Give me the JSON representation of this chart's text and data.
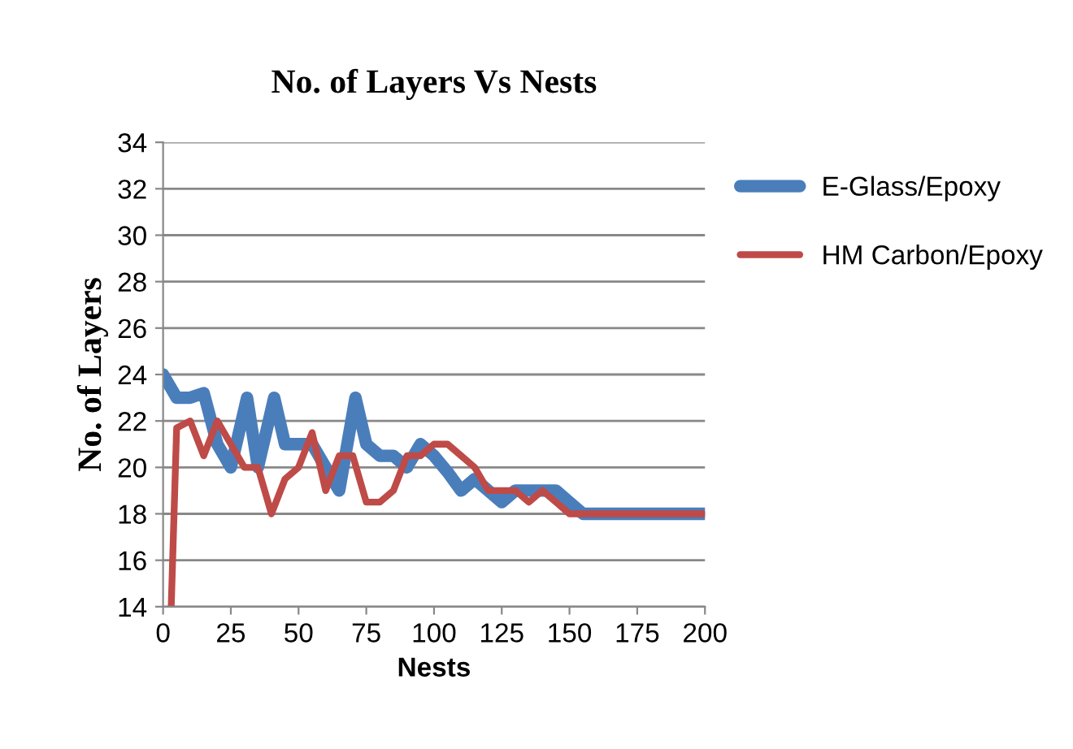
{
  "chart_data": {
    "type": "line",
    "title": "No. of Layers Vs Nests",
    "xlabel": "Nests",
    "ylabel": "No. of Layers",
    "xlim": [
      0,
      200
    ],
    "xticks": [
      0,
      25,
      50,
      75,
      100,
      125,
      150,
      175,
      200
    ],
    "ylim": [
      14,
      34
    ],
    "yticks": [
      14,
      16,
      18,
      20,
      22,
      24,
      26,
      28,
      30,
      32,
      34
    ],
    "grid": "y",
    "legend": "top right",
    "marker": "none",
    "line_style": "solid",
    "series": [
      {
        "name": "E-Glass/Epoxy",
        "color": "#4a7ebb",
        "x": [
          0,
          5,
          10,
          15,
          20,
          25,
          31,
          35,
          41,
          45,
          50,
          55,
          60,
          65,
          71,
          75,
          80,
          85,
          90,
          95,
          100,
          105,
          110,
          115,
          120,
          125,
          130,
          135,
          140,
          145,
          150,
          155,
          200
        ],
        "values": [
          24,
          23,
          23,
          23.2,
          21,
          20,
          23,
          20,
          23,
          21,
          21,
          21,
          20,
          19,
          23,
          21,
          20.5,
          20.5,
          20,
          21,
          20.5,
          19.8,
          19,
          19.5,
          19,
          18.5,
          19,
          19,
          19,
          19,
          18.5,
          18,
          18
        ]
      },
      {
        "name": "HM Carbon/Epoxy",
        "color": "#be4b48",
        "x": [
          3,
          5,
          10,
          15,
          20,
          25,
          30,
          35,
          40,
          45,
          50,
          55,
          60,
          65,
          70,
          75,
          80,
          85,
          90,
          95,
          100,
          105,
          110,
          115,
          120,
          125,
          130,
          135,
          140,
          145,
          150,
          155,
          200
        ],
        "values": [
          14,
          21.7,
          22,
          20.5,
          22,
          21,
          20,
          20,
          18,
          19.5,
          20,
          21.5,
          19,
          20.5,
          20.5,
          18.5,
          18.5,
          19,
          20.5,
          20.5,
          21,
          21,
          20.5,
          20,
          19,
          19,
          19,
          18.5,
          19,
          18.5,
          18,
          18,
          18
        ]
      }
    ]
  }
}
